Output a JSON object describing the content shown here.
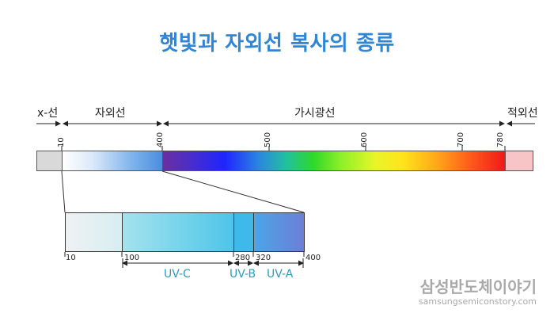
{
  "title": "햇빛과 자외선 복사의 종류",
  "regions": {
    "xray": "x-선",
    "uv": "자외선",
    "visible": "가시광선",
    "ir": "적외선"
  },
  "spectrum_ticks": {
    "t10": "10",
    "t400": "400",
    "t500": "500",
    "t600": "600",
    "t700": "700",
    "t780": "780"
  },
  "uv_ticks": {
    "t10": "10",
    "t100": "100",
    "t280": "280",
    "t320": "320",
    "t400": "400"
  },
  "uv_bands": {
    "uvc": "UV-C",
    "uvb": "UV-B",
    "uva": "UV-A"
  },
  "brand": {
    "name": "삼성반도체이야기",
    "url": "samsungsemiconstory.com"
  },
  "colors": {
    "title": "#2f86d8",
    "band_label": "#2a9cc4",
    "xray_fill": "#d9d9d9",
    "ir_fill": "#f7c5c5"
  }
}
